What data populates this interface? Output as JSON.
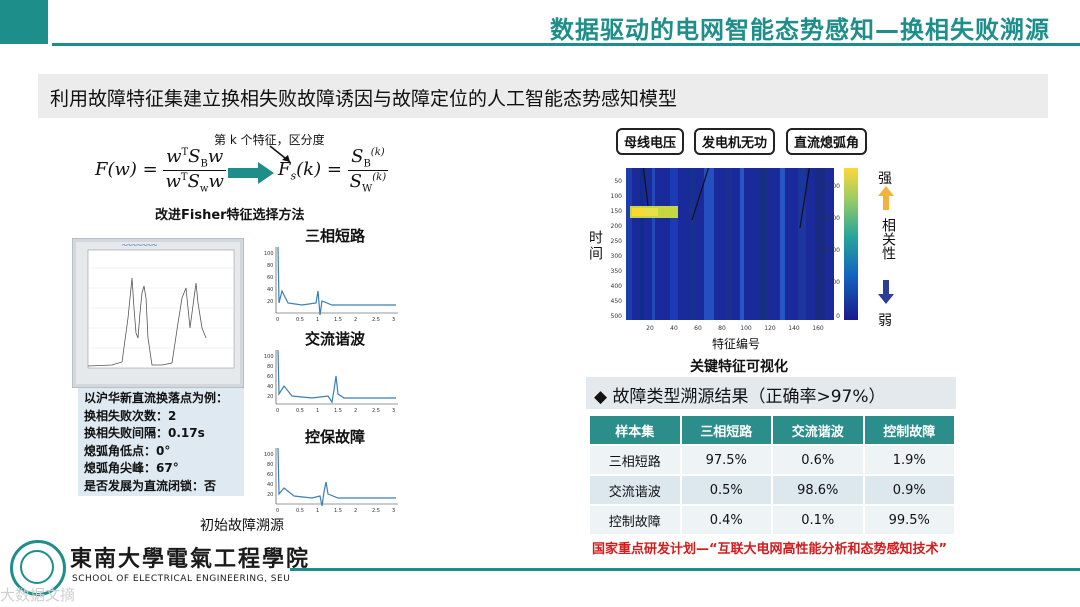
{
  "header": {
    "title": "数据驱动的电网智能态势感知—换相失败溯源",
    "accent_color": "#1e8e8a"
  },
  "subtitle": "利用故障特征集建立换相失败故障诱因与故障定位的人工智能态势感知模型",
  "fisher": {
    "annotation": "第 k 个特征，区分度",
    "caption": "改进Fisher特征选择方法"
  },
  "mini_plots": [
    {
      "title": "三相短路"
    },
    {
      "title": "交流谐波"
    },
    {
      "title": "控保故障"
    }
  ],
  "info_box": {
    "lines": [
      "以沪华新直流换落点为例：",
      "换相失败次数：2",
      "换相失败间隔：0.17s",
      "熄弧角低点：0°",
      "熄弧角尖峰：67°",
      "是否发展为直流闭锁：否"
    ]
  },
  "initial_caption": "初始故障溯源",
  "heatmap": {
    "callouts": [
      "母线电压",
      "发电机无功",
      "直流熄弧角"
    ],
    "ylabel": "时间",
    "xlabel": "特征编号",
    "caption": "关键特征可视化",
    "strong_label": "强",
    "weak_label": "弱",
    "corr_label": "相关性",
    "yticks": [
      "50",
      "100",
      "150",
      "200",
      "250",
      "300",
      "350",
      "400",
      "450",
      "500"
    ],
    "xticks": [
      "20",
      "40",
      "60",
      "80",
      "100",
      "120",
      "140",
      "160"
    ],
    "cbticks": [
      "2000",
      "1500",
      "1000",
      "500",
      "0"
    ]
  },
  "result": {
    "title": "◆ 故障类型溯源结果（正确率>97%）",
    "columns": [
      "样本集",
      "三相短路",
      "交流谐波",
      "控制故障"
    ],
    "rows": [
      [
        "三相短路",
        "97.5%",
        "0.6%",
        "1.9%"
      ],
      [
        "交流谐波",
        "0.5%",
        "98.6%",
        "0.9%"
      ],
      [
        "控制故障",
        "0.4%",
        "0.1%",
        "99.5%"
      ]
    ]
  },
  "project_note": "国家重点研发计划—“互联大电网高性能分析和态势感知技术”",
  "footer": {
    "logo_cn": "東南大學電氣工程學院",
    "logo_en": "SCHOOL OF ELECTRICAL ENGINEERING, SEU",
    "watermark": "大数据文摘"
  }
}
